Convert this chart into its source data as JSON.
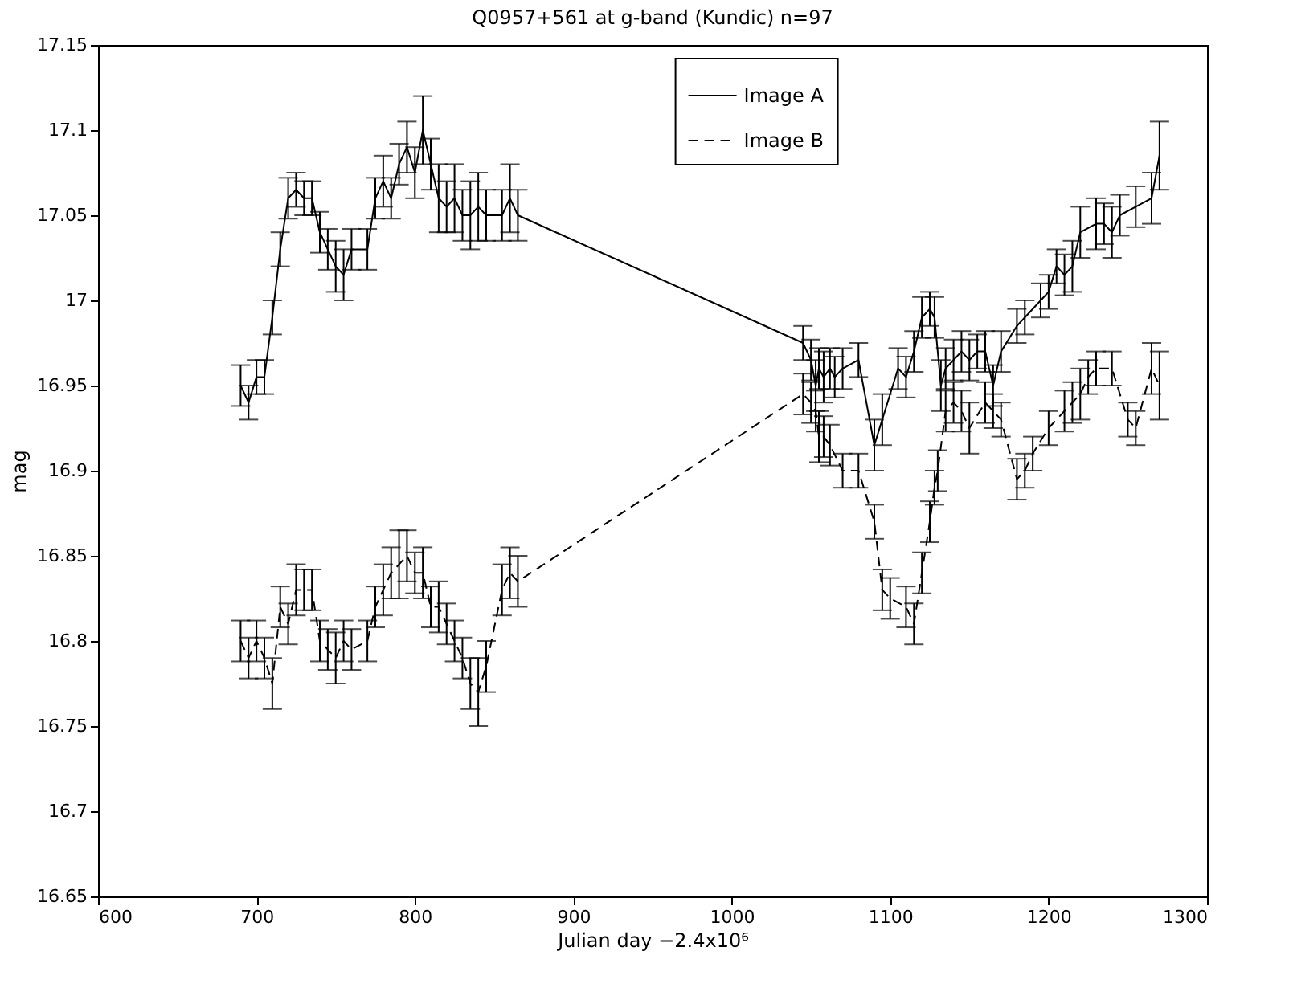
{
  "chart_data": {
    "type": "line",
    "title": "Q0957+561 at g-band (Kundic) n=97",
    "xlabel": "Julian day −2.4x10⁶",
    "ylabel": "mag",
    "xlim": [
      600,
      1300
    ],
    "xticks": [
      600,
      700,
      800,
      900,
      1000,
      1100,
      1200,
      1300
    ],
    "ylim": [
      16.65,
      17.15
    ],
    "yticks": [
      16.65,
      16.7,
      16.75,
      16.8,
      16.85,
      16.9,
      16.95,
      17,
      17.05,
      17.1,
      17.15
    ],
    "grid": false,
    "legend": "top right",
    "marker": "none",
    "series": [
      {
        "name": "Image A",
        "color": "#000000",
        "line_style": "solid",
        "x": [
          690,
          695,
          700,
          705,
          710,
          715,
          720,
          725,
          730,
          735,
          740,
          745,
          750,
          755,
          760,
          770,
          775,
          780,
          785,
          790,
          795,
          800,
          805,
          810,
          815,
          820,
          825,
          830,
          835,
          840,
          845,
          855,
          860,
          865,
          1045,
          1050,
          1053,
          1055,
          1058,
          1062,
          1065,
          1070,
          1080,
          1090,
          1095,
          1105,
          1110,
          1115,
          1120,
          1125,
          1128,
          1132,
          1135,
          1140,
          1145,
          1150,
          1155,
          1160,
          1165,
          1170,
          1180,
          1185,
          1195,
          1200,
          1205,
          1210,
          1215,
          1220,
          1230,
          1235,
          1240,
          1245,
          1255,
          1265,
          1270
        ],
        "values": [
          16.95,
          16.94,
          16.955,
          16.955,
          16.99,
          17.03,
          17.06,
          17.065,
          17.06,
          17.06,
          17.04,
          17.03,
          17.02,
          17.015,
          17.03,
          17.03,
          17.06,
          17.07,
          17.06,
          17.08,
          17.09,
          17.075,
          17.1,
          17.08,
          17.06,
          17.055,
          17.06,
          17.05,
          17.05,
          17.055,
          17.05,
          17.05,
          17.06,
          17.05,
          16.975,
          16.965,
          16.95,
          16.96,
          16.955,
          16.96,
          16.955,
          16.96,
          16.965,
          16.915,
          16.93,
          16.96,
          16.955,
          16.97,
          16.99,
          16.995,
          16.99,
          16.95,
          16.96,
          16.965,
          16.97,
          16.965,
          16.97,
          16.97,
          16.95,
          16.97,
          16.985,
          16.99,
          17.0,
          17.005,
          17.02,
          17.015,
          17.02,
          17.04,
          17.045,
          17.045,
          17.04,
          17.05,
          17.055,
          17.06,
          17.085
        ],
        "errors": [
          0.012,
          0.01,
          0.01,
          0.01,
          0.01,
          0.01,
          0.012,
          0.01,
          0.01,
          0.01,
          0.012,
          0.012,
          0.015,
          0.015,
          0.012,
          0.012,
          0.012,
          0.015,
          0.012,
          0.012,
          0.015,
          0.015,
          0.02,
          0.015,
          0.02,
          0.015,
          0.02,
          0.015,
          0.02,
          0.02,
          0.015,
          0.015,
          0.02,
          0.015,
          0.01,
          0.012,
          0.015,
          0.012,
          0.015,
          0.012,
          0.012,
          0.012,
          0.01,
          0.015,
          0.015,
          0.012,
          0.012,
          0.012,
          0.012,
          0.01,
          0.012,
          0.015,
          0.012,
          0.012,
          0.012,
          0.012,
          0.01,
          0.012,
          0.012,
          0.012,
          0.01,
          0.01,
          0.01,
          0.01,
          0.01,
          0.012,
          0.015,
          0.015,
          0.015,
          0.012,
          0.015,
          0.012,
          0.012,
          0.015,
          0.02
        ]
      },
      {
        "name": "Image B",
        "color": "#000000",
        "line_style": "dashed",
        "x": [
          690,
          695,
          700,
          705,
          710,
          715,
          720,
          725,
          730,
          735,
          740,
          745,
          750,
          755,
          760,
          770,
          775,
          780,
          785,
          790,
          795,
          800,
          805,
          810,
          815,
          820,
          825,
          830,
          835,
          840,
          845,
          855,
          860,
          865,
          1045,
          1050,
          1053,
          1055,
          1058,
          1062,
          1070,
          1080,
          1090,
          1095,
          1100,
          1110,
          1115,
          1120,
          1125,
          1128,
          1130,
          1135,
          1140,
          1145,
          1150,
          1160,
          1165,
          1170,
          1180,
          1185,
          1190,
          1200,
          1210,
          1215,
          1220,
          1225,
          1230,
          1240,
          1250,
          1255,
          1265,
          1270
        ],
        "values": [
          16.8,
          16.79,
          16.8,
          16.79,
          16.775,
          16.82,
          16.81,
          16.83,
          16.83,
          16.83,
          16.8,
          16.795,
          16.79,
          16.8,
          16.795,
          16.8,
          16.82,
          16.83,
          16.84,
          16.845,
          16.85,
          16.84,
          16.84,
          16.82,
          16.82,
          16.81,
          16.8,
          16.79,
          16.775,
          16.77,
          16.785,
          16.83,
          16.84,
          16.835,
          16.945,
          16.94,
          16.935,
          16.92,
          16.92,
          16.915,
          16.9,
          16.9,
          16.87,
          16.83,
          16.825,
          16.82,
          16.81,
          16.84,
          16.87,
          16.89,
          16.9,
          16.935,
          16.94,
          16.935,
          16.925,
          16.94,
          16.935,
          16.93,
          16.895,
          16.9,
          16.91,
          16.925,
          16.935,
          16.94,
          16.945,
          16.955,
          16.96,
          16.96,
          16.93,
          16.925,
          16.96,
          16.95
        ],
        "errors": [
          0.012,
          0.012,
          0.012,
          0.012,
          0.015,
          0.012,
          0.012,
          0.015,
          0.012,
          0.012,
          0.012,
          0.012,
          0.015,
          0.012,
          0.012,
          0.012,
          0.012,
          0.015,
          0.015,
          0.02,
          0.015,
          0.012,
          0.015,
          0.012,
          0.015,
          0.012,
          0.012,
          0.012,
          0.015,
          0.02,
          0.015,
          0.015,
          0.015,
          0.015,
          0.012,
          0.012,
          0.012,
          0.015,
          0.012,
          0.012,
          0.01,
          0.01,
          0.01,
          0.012,
          0.012,
          0.012,
          0.012,
          0.012,
          0.012,
          0.01,
          0.012,
          0.012,
          0.012,
          0.012,
          0.015,
          0.012,
          0.01,
          0.01,
          0.012,
          0.01,
          0.01,
          0.01,
          0.012,
          0.012,
          0.015,
          0.01,
          0.01,
          0.01,
          0.01,
          0.01,
          0.015,
          0.02
        ]
      }
    ]
  }
}
